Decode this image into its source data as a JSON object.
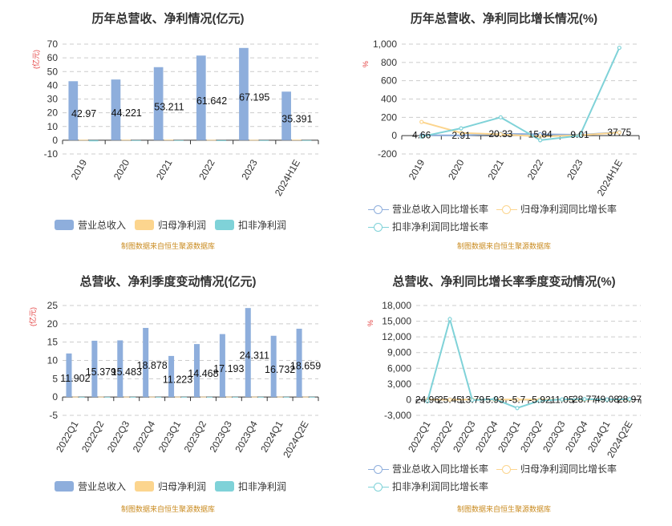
{
  "source_note": "制图数据来自恒生聚源数据库",
  "chart_data": [
    {
      "type": "bar",
      "title": "历年总营收、净利情况(亿元)",
      "unit_label": "(亿元)",
      "categories": [
        "2019",
        "2020",
        "2021",
        "2022",
        "2023",
        "2024H1E"
      ],
      "series": [
        {
          "name": "营业总收入",
          "color": "#8eaedc",
          "values": [
            42.97,
            44.221,
            53.211,
            61.642,
            67.195,
            35.391
          ]
        },
        {
          "name": "归母净利润",
          "color": "#fcd58e",
          "values": [
            0.3,
            0.3,
            0.35,
            0.25,
            0.25,
            0.35
          ]
        },
        {
          "name": "扣非净利润",
          "color": "#7fd2d8",
          "values": [
            -0.8,
            -0.5,
            -0.3,
            -0.6,
            -0.5,
            -0.3
          ]
        }
      ],
      "data_labels": [
        "42.97",
        "44.221",
        "53.211",
        "61.642",
        "67.195",
        "35.391"
      ],
      "ylim": [
        -10,
        70
      ],
      "yticks": [
        -10,
        0,
        10,
        20,
        30,
        40,
        50,
        60,
        70
      ],
      "grid": true,
      "legend": "bottom"
    },
    {
      "type": "line",
      "title": "历年总营收、净利同比增长情况(%)",
      "unit_label": "%",
      "categories": [
        "2019",
        "2020",
        "2021",
        "2022",
        "2023",
        "2024H1E"
      ],
      "series": [
        {
          "name": "营业总收入同比增长率",
          "color": "#8eaedc",
          "values": [
            4.66,
            2.91,
            20.33,
            15.84,
            9.01,
            37.75
          ]
        },
        {
          "name": "归母净利润同比增长率",
          "color": "#fcd58e",
          "values": [
            150,
            30,
            15,
            -10,
            5,
            35
          ]
        },
        {
          "name": "扣非净利润同比增长率",
          "color": "#7fd2d8",
          "values": [
            -10,
            80,
            200,
            -50,
            0,
            960
          ]
        }
      ],
      "data_labels": [
        "4.66",
        "2.91",
        "20.33",
        "15.84",
        "9.01",
        "37.75"
      ],
      "ylim": [
        -200,
        1000
      ],
      "yticks": [
        -200,
        0,
        200,
        400,
        600,
        800,
        1000
      ],
      "ytick_labels": [
        "-200",
        "0",
        "200",
        "400",
        "600",
        "800",
        "1,000"
      ],
      "grid": true,
      "legend": "bottom"
    },
    {
      "type": "bar",
      "title": "总营收、净利季度变动情况(亿元)",
      "unit_label": "(亿元)",
      "categories": [
        "2022Q1",
        "2022Q2",
        "2022Q3",
        "2022Q4",
        "2023Q1",
        "2023Q2",
        "2023Q3",
        "2023Q4",
        "2024Q1",
        "2024Q2E"
      ],
      "series": [
        {
          "name": "营业总收入",
          "color": "#8eaedc",
          "values": [
            11.902,
            15.379,
            15.483,
            18.878,
            11.223,
            14.468,
            17.193,
            24.311,
            16.732,
            18.659
          ]
        },
        {
          "name": "归母净利润",
          "color": "#fcd58e",
          "values": [
            0.1,
            0.1,
            0.1,
            0.1,
            0.1,
            0.1,
            0.1,
            0.1,
            0.1,
            0.1
          ]
        },
        {
          "name": "扣非净利润",
          "color": "#7fd2d8",
          "values": [
            0.05,
            0.05,
            0.05,
            0.05,
            0.05,
            0.05,
            0.05,
            0.05,
            0.05,
            0.05
          ]
        }
      ],
      "data_labels": [
        "11.902",
        "15.379",
        "15.483",
        "18.878",
        "11.223",
        "14.468",
        "17.193",
        "24.311",
        "16.732",
        "18.659"
      ],
      "ylim": [
        -5,
        25
      ],
      "yticks": [
        -5,
        0,
        5,
        10,
        15,
        20,
        25
      ],
      "grid": true,
      "legend": "bottom"
    },
    {
      "type": "line",
      "title": "总营收、净利同比增长率季度变动情况(%)",
      "unit_label": "%",
      "categories": [
        "2022Q1",
        "2022Q2",
        "2022Q3",
        "2022Q4",
        "2023Q1",
        "2023Q2",
        "2023Q3",
        "2023Q4",
        "2024Q1",
        "2024Q2E"
      ],
      "series": [
        {
          "name": "营业总收入同比增长率",
          "color": "#8eaedc",
          "values": [
            24.96,
            25.45,
            13.79,
            5.93,
            -5.7,
            -5.92,
            11.05,
            28.77,
            49.08,
            28.97
          ]
        },
        {
          "name": "归母净利润同比增长率",
          "color": "#fcd58e",
          "values": [
            0,
            0,
            0,
            0,
            0,
            0,
            0,
            0,
            0,
            0
          ]
        },
        {
          "name": "扣非净利润同比增长率",
          "color": "#7fd2d8",
          "values": [
            -300,
            15400,
            -100,
            100,
            -1600,
            -200,
            50,
            100,
            0,
            100
          ]
        }
      ],
      "data_labels": [
        "24.96",
        "25.45",
        "13.79",
        "5.93",
        "-5.7",
        "-5.92",
        "11.05",
        "28.77",
        "49.08",
        "28.97"
      ],
      "ylim": [
        -3000,
        18000
      ],
      "yticks": [
        -3000,
        0,
        3000,
        6000,
        9000,
        12000,
        15000,
        18000
      ],
      "ytick_labels": [
        "-3,000",
        "0",
        "3,000",
        "6,000",
        "9,000",
        "12,000",
        "15,000",
        "18,000"
      ],
      "grid": true,
      "legend": "bottom"
    }
  ]
}
